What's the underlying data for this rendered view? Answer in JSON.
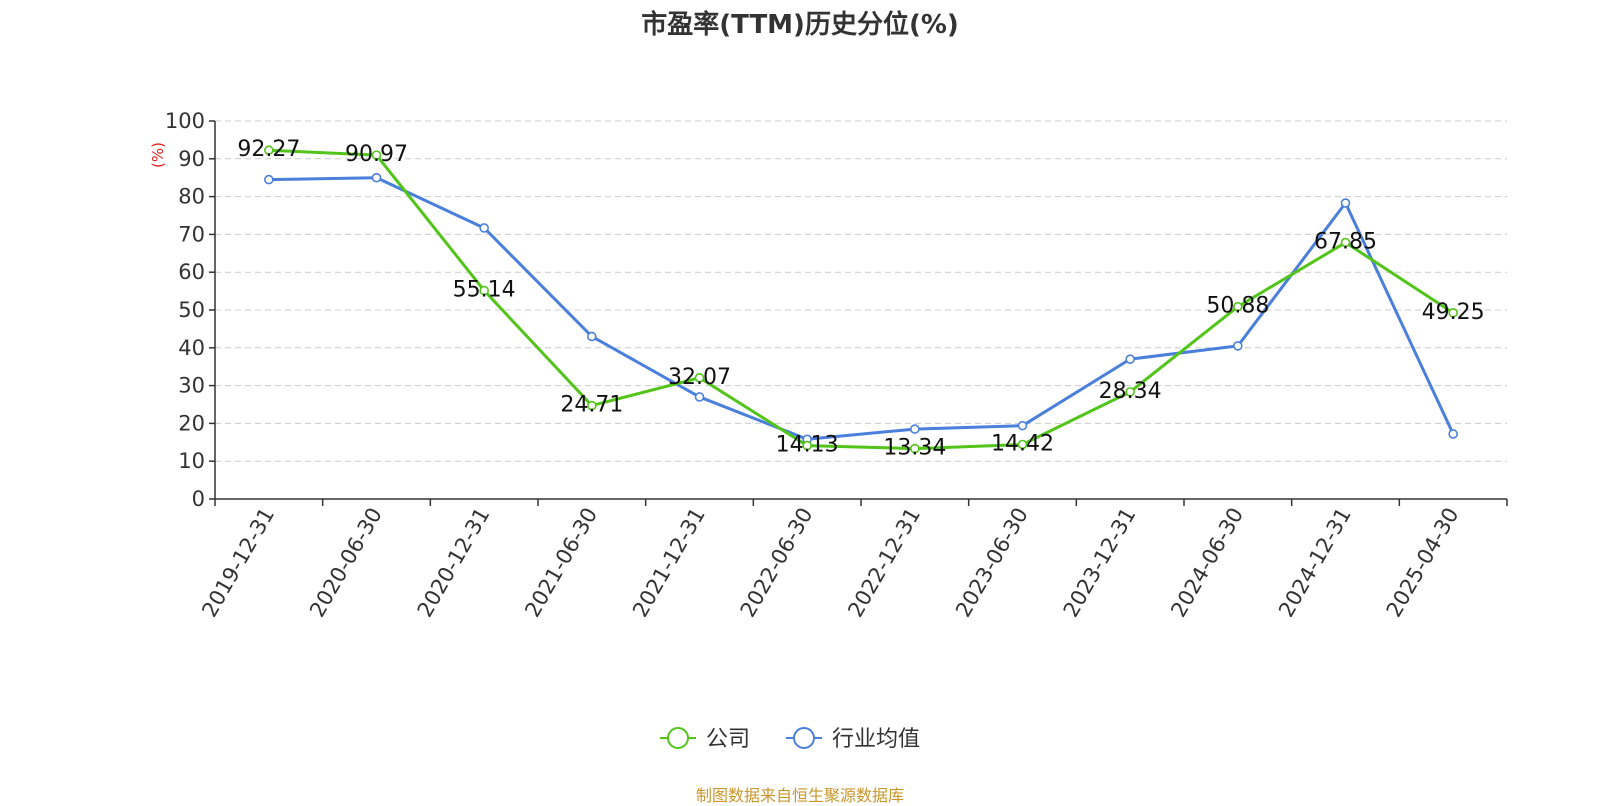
{
  "chart_data": {
    "type": "line",
    "title": "市盈率(TTM)历史分位(%)",
    "ylabel": "(%)",
    "xlabel": "",
    "categories": [
      "2019-12-31",
      "2020-06-30",
      "2020-12-31",
      "2021-06-30",
      "2021-12-31",
      "2022-06-30",
      "2022-12-31",
      "2023-06-30",
      "2023-12-31",
      "2024-06-30",
      "2024-12-31",
      "2025-04-30"
    ],
    "ylim": [
      0,
      100
    ],
    "yticks": [
      0,
      10,
      20,
      30,
      40,
      50,
      60,
      70,
      80,
      90,
      100
    ],
    "grid": true,
    "legend_position": "bottom-center",
    "series": [
      {
        "name": "公司",
        "color": "#52c41a",
        "values": [
          92.27,
          90.97,
          55.14,
          24.71,
          32.07,
          14.13,
          13.34,
          14.42,
          28.34,
          50.88,
          67.85,
          49.25
        ],
        "labels": [
          "92.27",
          "90.97",
          "55.14",
          "24.71",
          "32.07",
          "14.13",
          "13.34",
          "14.42",
          "28.34",
          "50.88",
          "67.85",
          "49.25"
        ]
      },
      {
        "name": "行业均值",
        "color": "#4a7fdb",
        "values": [
          84.5,
          85.0,
          71.7,
          43.0,
          27.0,
          15.8,
          18.5,
          19.4,
          37.0,
          40.5,
          78.3,
          17.2
        ]
      }
    ]
  },
  "footer": "制图数据来自恒生聚源数据库"
}
